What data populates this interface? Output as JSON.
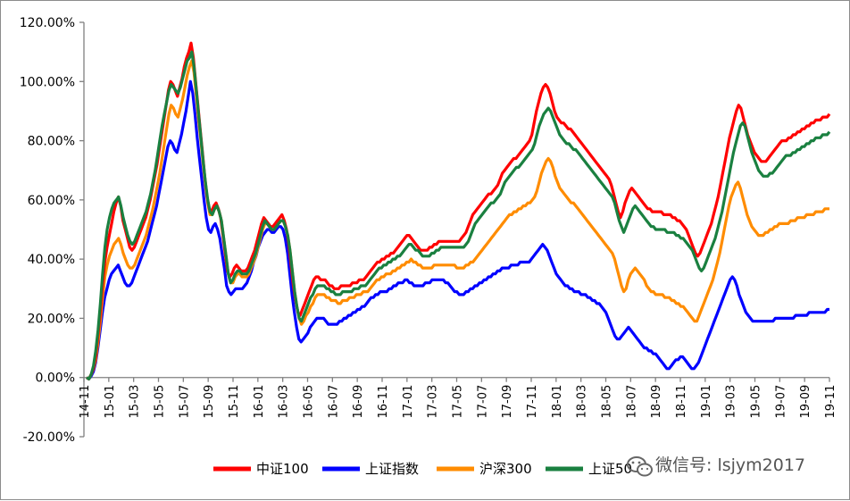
{
  "chart_data": {
    "type": "line",
    "title": "",
    "xlabel": "",
    "ylabel": "",
    "ylim": [
      -20,
      120
    ],
    "y_ticks": [
      "120.00%",
      "100.00%",
      "80.00%",
      "60.00%",
      "40.00%",
      "20.00%",
      "0.00%",
      "-20.00%"
    ],
    "x_ticks": [
      "14-11",
      "15-01",
      "15-03",
      "15-05",
      "15-07",
      "15-09",
      "15-11",
      "16-01",
      "16-03",
      "16-05",
      "16-07",
      "16-09",
      "16-11",
      "17-01",
      "17-03",
      "17-05",
      "17-07",
      "17-09",
      "17-11",
      "18-01",
      "18-03",
      "18-05",
      "18-07",
      "18-09",
      "18-11",
      "19-01",
      "19-03",
      "19-05",
      "19-07",
      "19-09",
      "19-11"
    ],
    "legend_position": "bottom",
    "series": [
      {
        "name": "中证100",
        "color": "#ff0000",
        "values": [
          0,
          -0.5,
          1,
          3,
          7,
          14,
          22,
          31,
          39,
          44,
          48,
          52,
          56,
          59,
          61,
          58,
          53,
          50,
          47,
          44,
          43,
          44,
          46,
          48,
          50,
          52,
          54,
          57,
          60,
          64,
          68,
          72,
          77,
          82,
          87,
          92,
          97,
          100,
          99,
          97,
          95,
          98,
          101,
          105,
          108,
          110,
          113,
          108,
          100,
          92,
          84,
          76,
          68,
          61,
          57,
          56,
          58,
          59,
          57,
          54,
          48,
          42,
          36,
          34,
          35,
          37,
          38,
          37,
          36,
          36,
          36,
          37,
          39,
          41,
          43,
          46,
          49,
          52,
          54,
          53,
          52,
          51,
          51,
          52,
          53,
          54,
          55,
          53,
          50,
          45,
          38,
          31,
          26,
          22,
          21,
          23,
          25,
          27,
          29,
          31,
          33,
          34,
          34,
          33,
          33,
          33,
          32,
          31,
          31,
          30,
          30,
          30,
          31,
          31,
          31,
          31,
          31,
          32,
          32,
          32,
          33,
          33,
          33,
          34,
          35,
          36,
          37,
          38,
          39,
          39,
          40,
          40,
          41,
          41,
          42,
          42,
          43,
          44,
          45,
          46,
          47,
          48,
          48,
          47,
          46,
          45,
          44,
          43,
          43,
          43,
          43,
          44,
          44,
          45,
          45,
          46,
          46,
          46,
          46,
          46,
          46,
          46,
          46,
          46,
          46,
          47,
          48,
          49,
          51,
          53,
          55,
          56,
          57,
          58,
          59,
          60,
          61,
          62,
          62,
          63,
          64,
          65,
          67,
          69,
          70,
          71,
          72,
          73,
          74,
          74,
          75,
          76,
          77,
          78,
          79,
          80,
          82,
          86,
          90,
          93,
          96,
          98,
          99,
          98,
          96,
          93,
          90,
          88,
          87,
          86,
          86,
          85,
          84,
          84,
          83,
          82,
          81,
          80,
          79,
          78,
          77,
          76,
          75,
          74,
          73,
          72,
          71,
          70,
          69,
          68,
          67,
          65,
          62,
          59,
          56,
          54,
          56,
          59,
          61,
          63,
          64,
          63,
          62,
          61,
          60,
          59,
          58,
          57,
          57,
          56,
          56,
          56,
          56,
          56,
          55,
          55,
          55,
          55,
          54,
          54,
          53,
          53,
          52,
          51,
          50,
          48,
          46,
          44,
          42,
          41,
          42,
          44,
          46,
          48,
          50,
          52,
          55,
          58,
          61,
          65,
          69,
          73,
          77,
          81,
          84,
          87,
          90,
          92,
          91,
          88,
          85,
          82,
          80,
          78,
          76,
          75,
          74,
          73,
          73,
          73,
          74,
          75,
          76,
          77,
          78,
          79,
          80,
          80,
          80,
          81,
          81,
          82,
          82,
          83,
          83,
          84,
          84,
          85,
          85,
          86,
          86,
          87,
          87,
          87,
          88,
          88,
          88,
          89
        ]
      },
      {
        "name": "上证指数",
        "color": "#0000ff",
        "values": [
          0,
          -0.5,
          0.5,
          2,
          5,
          10,
          16,
          22,
          27,
          30,
          33,
          35,
          36,
          37,
          38,
          36,
          34,
          32,
          31,
          31,
          32,
          34,
          36,
          38,
          40,
          42,
          44,
          46,
          49,
          52,
          55,
          58,
          62,
          66,
          70,
          74,
          78,
          80,
          79,
          77,
          76,
          79,
          82,
          86,
          90,
          95,
          100,
          96,
          89,
          81,
          74,
          67,
          60,
          54,
          50,
          49,
          51,
          52,
          50,
          47,
          42,
          37,
          31,
          29,
          28,
          29,
          30,
          30,
          30,
          30,
          31,
          32,
          34,
          36,
          39,
          41,
          44,
          46,
          48,
          49,
          50,
          50,
          49,
          49,
          50,
          51,
          51,
          50,
          47,
          42,
          35,
          28,
          22,
          17,
          13,
          12,
          13,
          14,
          15,
          17,
          18,
          19,
          20,
          20,
          20,
          20,
          19,
          18,
          18,
          18,
          18,
          18,
          19,
          19,
          20,
          20,
          21,
          21,
          22,
          22,
          23,
          23,
          24,
          24,
          25,
          26,
          27,
          27,
          28,
          28,
          29,
          29,
          29,
          29,
          30,
          30,
          31,
          31,
          32,
          32,
          32,
          33,
          33,
          32,
          32,
          31,
          31,
          31,
          31,
          31,
          32,
          32,
          32,
          33,
          33,
          33,
          33,
          33,
          33,
          32,
          32,
          31,
          30,
          29,
          29,
          28,
          28,
          28,
          29,
          29,
          30,
          30,
          31,
          31,
          32,
          32,
          33,
          33,
          34,
          34,
          35,
          35,
          36,
          36,
          37,
          37,
          37,
          37,
          38,
          38,
          38,
          38,
          39,
          39,
          39,
          39,
          39,
          40,
          41,
          42,
          43,
          44,
          45,
          44,
          43,
          41,
          39,
          37,
          35,
          34,
          33,
          32,
          31,
          31,
          30,
          30,
          29,
          29,
          29,
          28,
          28,
          28,
          27,
          27,
          26,
          26,
          25,
          25,
          24,
          23,
          22,
          20,
          18,
          16,
          14,
          13,
          13,
          14,
          15,
          16,
          17,
          16,
          15,
          14,
          13,
          12,
          11,
          10,
          10,
          9,
          9,
          8,
          8,
          7,
          6,
          5,
          4,
          3,
          3,
          4,
          5,
          6,
          6,
          7,
          7,
          6,
          5,
          4,
          3,
          3,
          4,
          5,
          7,
          9,
          11,
          13,
          15,
          17,
          19,
          21,
          23,
          25,
          27,
          29,
          31,
          33,
          34,
          33,
          31,
          28,
          26,
          24,
          22,
          21,
          20,
          19,
          19,
          19,
          19,
          19,
          19,
          19,
          19,
          19,
          19,
          20,
          20,
          20,
          20,
          20,
          20,
          20,
          20,
          20,
          21,
          21,
          21,
          21,
          21,
          21,
          22,
          22,
          22,
          22,
          22,
          22,
          22,
          22,
          23,
          23
        ]
      },
      {
        "name": "沪深300",
        "color": "#ff8c00",
        "values": [
          0,
          -0.5,
          1,
          3,
          6,
          12,
          19,
          27,
          34,
          38,
          41,
          43,
          45,
          46,
          47,
          45,
          42,
          40,
          38,
          37,
          37,
          38,
          40,
          42,
          44,
          46,
          48,
          51,
          54,
          57,
          61,
          65,
          69,
          74,
          79,
          84,
          89,
          92,
          91,
          89,
          88,
          91,
          94,
          98,
          102,
          105,
          107,
          103,
          95,
          87,
          80,
          72,
          65,
          59,
          55,
          55,
          57,
          58,
          56,
          53,
          47,
          41,
          35,
          32,
          32,
          34,
          35,
          35,
          34,
          34,
          34,
          35,
          37,
          39,
          41,
          44,
          47,
          50,
          52,
          52,
          51,
          50,
          50,
          51,
          52,
          53,
          53,
          51,
          48,
          43,
          36,
          29,
          24,
          20,
          18,
          19,
          21,
          22,
          24,
          25,
          27,
          28,
          28,
          28,
          28,
          27,
          27,
          26,
          26,
          26,
          25,
          25,
          26,
          26,
          26,
          27,
          27,
          27,
          28,
          28,
          28,
          29,
          29,
          29,
          30,
          31,
          32,
          33,
          33,
          34,
          34,
          35,
          35,
          35,
          36,
          36,
          37,
          37,
          38,
          38,
          39,
          39,
          40,
          39,
          39,
          38,
          38,
          37,
          37,
          37,
          37,
          37,
          38,
          38,
          38,
          38,
          38,
          38,
          38,
          38,
          38,
          38,
          37,
          37,
          37,
          37,
          38,
          38,
          39,
          39,
          40,
          41,
          42,
          43,
          44,
          45,
          46,
          47,
          48,
          49,
          50,
          51,
          52,
          53,
          54,
          55,
          55,
          56,
          56,
          57,
          57,
          58,
          58,
          59,
          59,
          60,
          61,
          63,
          66,
          69,
          71,
          73,
          74,
          73,
          71,
          68,
          66,
          64,
          63,
          62,
          61,
          60,
          59,
          59,
          58,
          57,
          56,
          55,
          54,
          53,
          52,
          51,
          50,
          49,
          48,
          47,
          46,
          45,
          44,
          43,
          42,
          40,
          37,
          34,
          31,
          29,
          30,
          33,
          35,
          36,
          37,
          36,
          35,
          34,
          33,
          31,
          30,
          29,
          29,
          28,
          28,
          28,
          28,
          27,
          27,
          27,
          26,
          26,
          25,
          25,
          24,
          24,
          23,
          22,
          21,
          20,
          19,
          19,
          21,
          23,
          25,
          27,
          29,
          31,
          33,
          36,
          39,
          42,
          46,
          50,
          54,
          58,
          61,
          63,
          65,
          66,
          64,
          61,
          58,
          55,
          53,
          51,
          50,
          49,
          48,
          48,
          48,
          49,
          49,
          50,
          50,
          51,
          51,
          52,
          52,
          52,
          52,
          52,
          53,
          53,
          53,
          54,
          54,
          54,
          54,
          55,
          55,
          55,
          55,
          56,
          56,
          56,
          56,
          57,
          57,
          57
        ]
      },
      {
        "name": "上证50",
        "color": "#1a8040",
        "values": [
          0,
          -0.5,
          1,
          4,
          9,
          16,
          25,
          35,
          44,
          50,
          54,
          57,
          59,
          60,
          61,
          58,
          54,
          51,
          48,
          46,
          45,
          46,
          48,
          50,
          52,
          54,
          56,
          59,
          62,
          66,
          70,
          75,
          80,
          85,
          89,
          93,
          97,
          99,
          98,
          97,
          96,
          98,
          101,
          104,
          107,
          108,
          110,
          105,
          97,
          89,
          81,
          73,
          66,
          60,
          56,
          55,
          57,
          58,
          56,
          53,
          47,
          41,
          35,
          32,
          33,
          35,
          36,
          36,
          35,
          35,
          35,
          36,
          38,
          40,
          42,
          45,
          48,
          51,
          53,
          52,
          51,
          50,
          50,
          51,
          52,
          53,
          53,
          51,
          48,
          43,
          36,
          29,
          24,
          20,
          19,
          21,
          23,
          25,
          27,
          28,
          30,
          31,
          31,
          31,
          31,
          30,
          30,
          29,
          29,
          28,
          28,
          28,
          29,
          29,
          29,
          29,
          29,
          30,
          30,
          30,
          31,
          31,
          31,
          32,
          33,
          34,
          35,
          36,
          37,
          37,
          38,
          38,
          39,
          39,
          40,
          40,
          41,
          41,
          42,
          43,
          44,
          45,
          45,
          44,
          43,
          43,
          42,
          41,
          41,
          41,
          41,
          42,
          42,
          43,
          43,
          44,
          44,
          44,
          44,
          44,
          44,
          44,
          44,
          44,
          44,
          44,
          45,
          46,
          48,
          50,
          52,
          53,
          54,
          55,
          56,
          57,
          58,
          59,
          59,
          60,
          61,
          62,
          64,
          66,
          67,
          68,
          69,
          70,
          71,
          71,
          72,
          73,
          74,
          75,
          76,
          77,
          79,
          82,
          85,
          87,
          89,
          90,
          91,
          90,
          88,
          86,
          84,
          82,
          81,
          80,
          79,
          79,
          78,
          77,
          77,
          76,
          75,
          74,
          73,
          72,
          71,
          70,
          69,
          68,
          67,
          66,
          65,
          64,
          63,
          62,
          61,
          59,
          56,
          53,
          51,
          49,
          51,
          53,
          55,
          57,
          58,
          57,
          56,
          55,
          54,
          53,
          52,
          51,
          51,
          50,
          50,
          50,
          50,
          50,
          49,
          49,
          49,
          49,
          48,
          48,
          47,
          47,
          46,
          45,
          44,
          43,
          41,
          39,
          37,
          36,
          37,
          39,
          41,
          43,
          45,
          47,
          50,
          53,
          56,
          60,
          64,
          68,
          72,
          76,
          79,
          82,
          85,
          86,
          85,
          82,
          79,
          76,
          74,
          72,
          70,
          69,
          68,
          68,
          68,
          69,
          69,
          70,
          71,
          72,
          73,
          74,
          75,
          75,
          75,
          76,
          76,
          77,
          77,
          78,
          78,
          79,
          79,
          80,
          80,
          81,
          81,
          81,
          82,
          82,
          82,
          83
        ]
      }
    ]
  },
  "watermark": {
    "text": "微信号: lsjym2017",
    "icon": "wechat-icon"
  }
}
